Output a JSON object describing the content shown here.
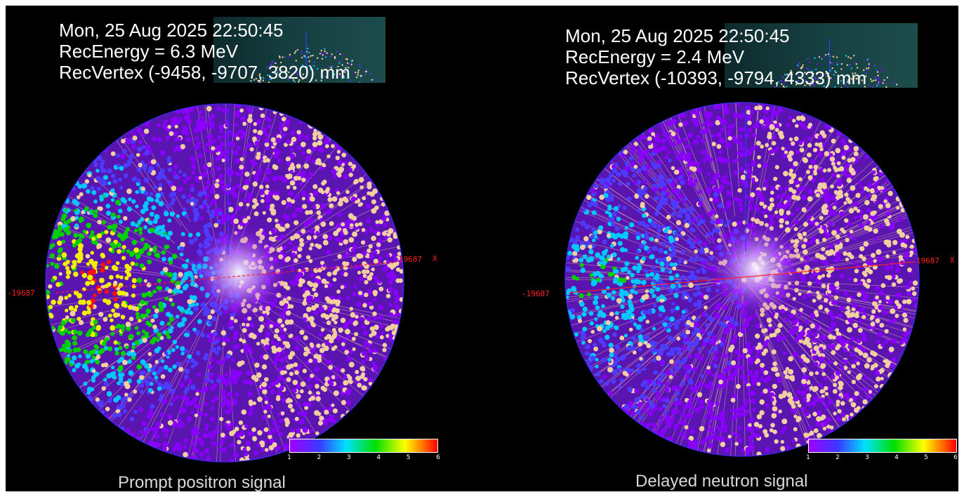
{
  "panels": [
    {
      "timestamp": "Mon, 25 Aug 2025 22:50:45",
      "energy": "RecEnergy =  6.3 MeV",
      "vertex": "RecVertex (-9458, -9707, 3820) mm",
      "axis_left": "-19687",
      "axis_right": "19687",
      "axis_letter": "X",
      "colorbar_ticks": [
        "1",
        "2",
        "3",
        "4",
        "5",
        "6"
      ],
      "caption": "Prompt positron signal"
    },
    {
      "timestamp": "Mon, 25 Aug 2025 22:50:45",
      "energy": "RecEnergy =  2.4 MeV",
      "vertex": "RecVertex (-10393, -9794, 4333) mm",
      "axis_left": "-19687",
      "axis_right": "19687",
      "axis_letter": "X",
      "colorbar_ticks": [
        "1",
        "2",
        "3",
        "4",
        "5",
        "6"
      ],
      "caption": "Delayed neutron signal"
    }
  ],
  "colors": {
    "background": "#000000",
    "hit_palette": [
      "#8a00ff",
      "#4b3cff",
      "#00c8ff",
      "#00d000",
      "#f0f000",
      "#ff1010"
    ],
    "dense_hits": "#f2cfa0",
    "axis_line": "#ff2020",
    "vertical_axis": "#2244ff"
  }
}
